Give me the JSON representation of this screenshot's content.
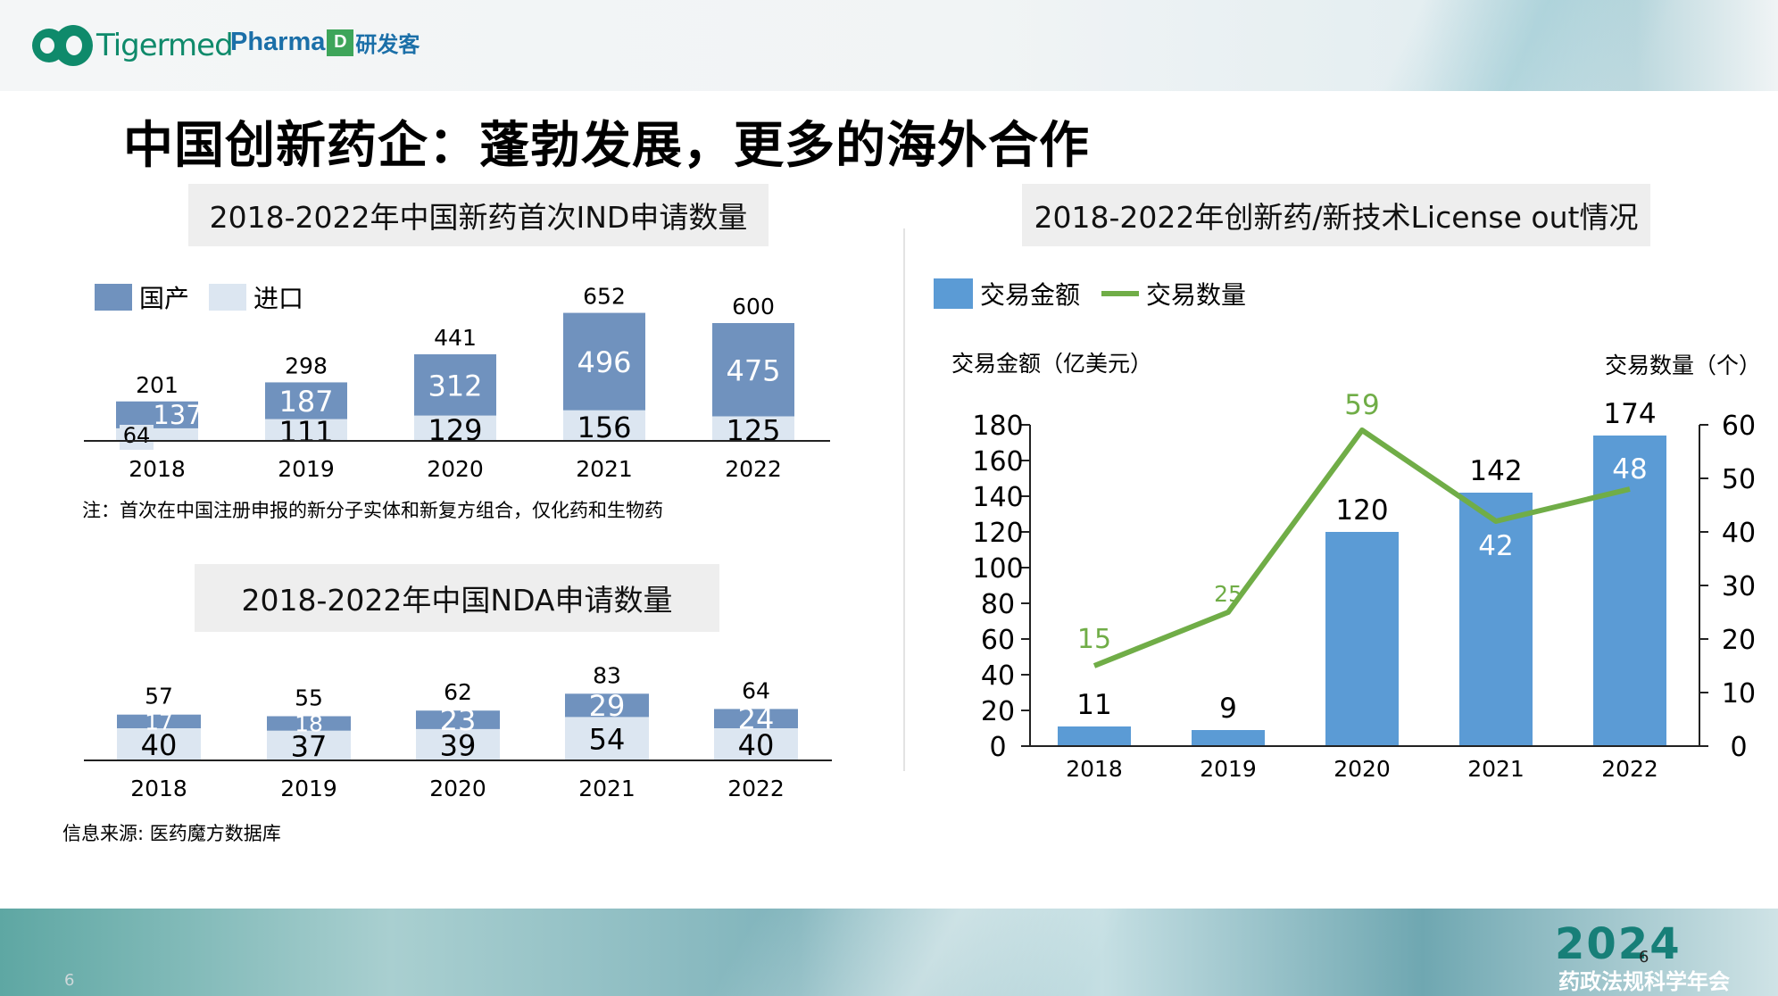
{
  "header": {
    "logo_tigermed": "Tigermed",
    "logo_pharma_text": "Pharma",
    "logo_pharma_box": "D",
    "logo_pharma_cn": "研发客"
  },
  "page_title": "中国创新药企：蓬勃发展，更多的海外合作",
  "ind_section": {
    "title": "2018-2022年中国新药首次IND申请数量"
  },
  "nda_section": {
    "title": "2018-2022年中国NDA申请数量"
  },
  "license_section": {
    "title": "2018-2022年创新药/新技术License out情况"
  },
  "note": "注：首次在中国注册申报的新分子实体和新复方组合，仅化药和生物药",
  "source": "信息来源: 医药魔方数据库",
  "footer": {
    "page_left": "6",
    "year": "2024",
    "page_right": "6",
    "event": "药政法规科学年会"
  },
  "colors": {
    "domestic": "#7092be",
    "import": "#dce6f1",
    "amount": "#5b9bd5",
    "count": "#70ad47"
  },
  "chart_data": [
    {
      "type": "bar",
      "stacked": true,
      "title": "2018-2022年中国新药首次IND申请数量",
      "categories": [
        "2018",
        "2019",
        "2020",
        "2021",
        "2022"
      ],
      "series": [
        {
          "name": "国产",
          "values": [
            137,
            187,
            312,
            496,
            475
          ]
        },
        {
          "name": "进口",
          "values": [
            64,
            111,
            129,
            156,
            125
          ]
        }
      ],
      "totals": [
        201,
        298,
        441,
        652,
        600
      ],
      "legend": "top-left",
      "grid": false
    },
    {
      "type": "bar",
      "stacked": true,
      "title": "2018-2022年中国NDA申请数量",
      "categories": [
        "2018",
        "2019",
        "2020",
        "2021",
        "2022"
      ],
      "series": [
        {
          "name": "",
          "values": [
            17,
            18,
            23,
            29,
            24
          ]
        },
        {
          "name": "",
          "values": [
            40,
            37,
            39,
            54,
            40
          ]
        }
      ],
      "totals": [
        57,
        55,
        62,
        83,
        64
      ],
      "grid": false
    },
    {
      "type": "bar",
      "title": "2018-2022年创新药/新技术License out情况",
      "categories": [
        "2018",
        "2019",
        "2020",
        "2021",
        "2022"
      ],
      "series": [
        {
          "name": "交易金额",
          "type": "bar",
          "axis": "left",
          "values": [
            11,
            9,
            120,
            142,
            174
          ]
        },
        {
          "name": "交易数量",
          "type": "line",
          "axis": "right",
          "values": [
            15,
            25,
            59,
            42,
            48
          ]
        }
      ],
      "ylabel": "交易金额（亿美元）",
      "ylabel_right": "交易数量（个）",
      "ylim": [
        0,
        180
      ],
      "yticks": [
        0,
        20,
        40,
        60,
        80,
        100,
        120,
        140,
        160,
        180
      ],
      "ylim_right": [
        0,
        60
      ],
      "yticks_right": [
        0,
        10,
        20,
        30,
        40,
        50,
        60
      ],
      "legend": "top-left",
      "grid": false
    }
  ]
}
